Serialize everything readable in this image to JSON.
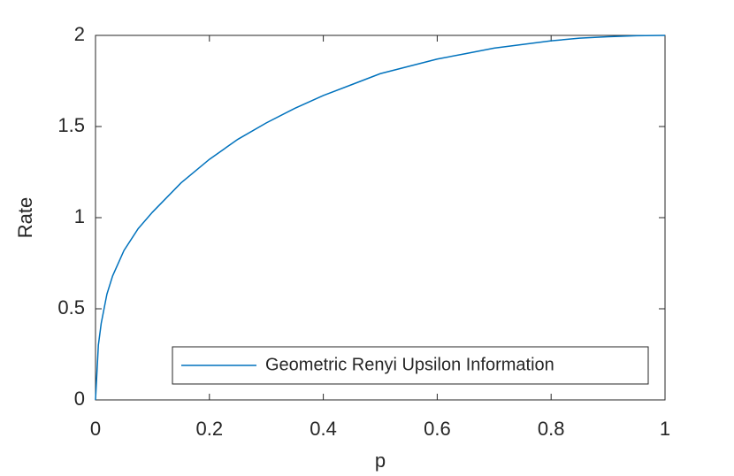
{
  "chart_data": {
    "type": "line",
    "x_label": "p",
    "y_label": "Rate",
    "x": [
      0,
      0.005,
      0.01,
      0.02,
      0.03,
      0.05,
      0.075,
      0.1,
      0.15,
      0.2,
      0.25,
      0.3,
      0.35,
      0.4,
      0.45,
      0.5,
      0.55,
      0.6,
      0.65,
      0.7,
      0.75,
      0.8,
      0.85,
      0.9,
      0.95,
      1
    ],
    "series": [
      {
        "name": "Geometric Renyi Upsilon Information",
        "color": "#0072bd",
        "values": [
          0,
          0.3,
          0.42,
          0.58,
          0.68,
          0.82,
          0.94,
          1.03,
          1.19,
          1.32,
          1.43,
          1.52,
          1.6,
          1.67,
          1.73,
          1.79,
          1.83,
          1.87,
          1.9,
          1.93,
          1.95,
          1.97,
          1.985,
          1.993,
          1.998,
          2
        ]
      }
    ],
    "xlim": [
      0,
      1
    ],
    "xticks": [
      0,
      0.2,
      0.4,
      0.6,
      0.8,
      1
    ],
    "ylim": [
      0,
      2
    ],
    "yticks": [
      0,
      0.5,
      1,
      1.5,
      2
    ],
    "grid": false,
    "legend": "bottom-right"
  }
}
